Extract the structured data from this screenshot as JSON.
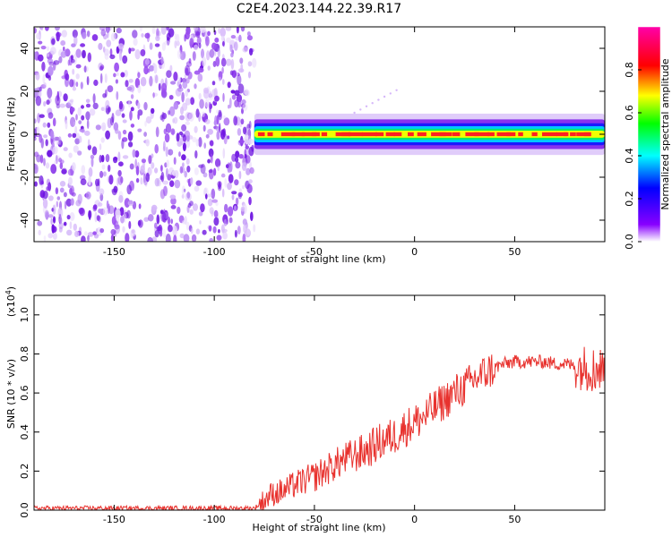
{
  "title": "C2E4.2023.144.22.39.R17",
  "colors": {
    "spectro_noise": "#7a1fe6",
    "snr_line": "#e8322e",
    "axis": "#000000"
  },
  "chart_data": [
    {
      "type": "heatmap",
      "xlabel": "Height of straight line (km)",
      "ylabel": "Frequency (Hz)",
      "xlim": [
        -190,
        95
      ],
      "ylim": [
        -50,
        50
      ],
      "xticks": [
        -150,
        -100,
        -50,
        0,
        50
      ],
      "yticks": [
        -40,
        -20,
        0,
        20,
        40
      ],
      "colorbar": {
        "label": "Normalized spectral amplitude",
        "ticks": [
          "0.0",
          "0.2",
          "0.4",
          "0.6",
          "0.8"
        ],
        "colormap": [
          "#ffffff",
          "#8800ff",
          "#0000ff",
          "#00ffff",
          "#00ff00",
          "#ffff00",
          "#ff0000",
          "#ff00aa"
        ]
      },
      "signal_band": {
        "x_start": -80,
        "x_end": 95,
        "center_freq": 0,
        "half_width": 3,
        "peak_amplitude": 0.85
      },
      "noise_region": {
        "x_start": -190,
        "x_end": -80,
        "freq_range": [
          -50,
          50
        ]
      }
    },
    {
      "type": "line",
      "xlabel": "Height of straight line (km)",
      "ylabel": "SNR (10 * v/v)",
      "yscale_label": "(x10",
      "yscale_exponent": "4",
      "yscale_close": ")",
      "xlim": [
        -190,
        95
      ],
      "ylim": [
        0,
        1.1
      ],
      "xticks": [
        -150,
        -100,
        -50,
        0,
        50
      ],
      "yticks": [
        "0.0",
        "0.2",
        "0.4",
        "0.6",
        "0.8",
        "1.0"
      ],
      "series": [
        {
          "x": [
            -190,
            -80,
            -76,
            -72,
            -65,
            -60,
            -55,
            -50,
            -45,
            -40,
            -35,
            -30,
            -25,
            -20,
            -15,
            -10,
            -5,
            0,
            5,
            10,
            15,
            20,
            25,
            30,
            35,
            40,
            45,
            50,
            55,
            60,
            65,
            70,
            75,
            80,
            85,
            90,
            95
          ],
          "values": [
            0.01,
            0.01,
            0.04,
            0.08,
            0.1,
            0.13,
            0.15,
            0.17,
            0.2,
            0.23,
            0.26,
            0.28,
            0.3,
            0.33,
            0.36,
            0.38,
            0.42,
            0.45,
            0.48,
            0.52,
            0.56,
            0.6,
            0.63,
            0.67,
            0.7,
            0.73,
            0.75,
            0.76,
            0.76,
            0.76,
            0.76,
            0.75,
            0.75,
            0.74,
            0.73,
            0.72,
            0.72
          ]
        }
      ]
    }
  ]
}
